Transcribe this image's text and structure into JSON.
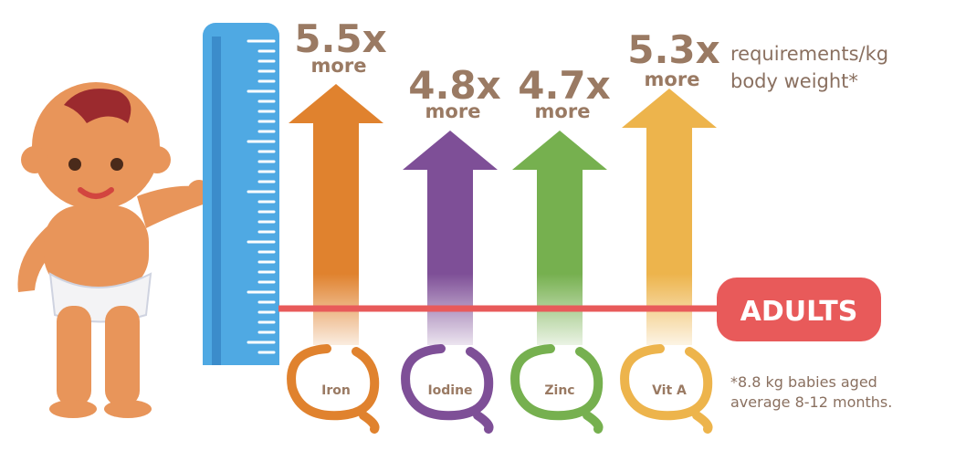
{
  "items": [
    {
      "value": "5.5x",
      "unit": "more",
      "label": "Iron"
    },
    {
      "value": "4.8x",
      "unit": "more",
      "label": "Iodine"
    },
    {
      "value": "4.7x",
      "unit": "more",
      "label": "Zinc"
    },
    {
      "value": "5.3x",
      "unit": "more",
      "label": "Vit A"
    }
  ],
  "note": [
    "requirements/kg",
    "body weight*"
  ],
  "adult_label": "ADULTS",
  "footnote": [
    "*8.8 kg babies aged",
    "average 8-12 months."
  ]
}
